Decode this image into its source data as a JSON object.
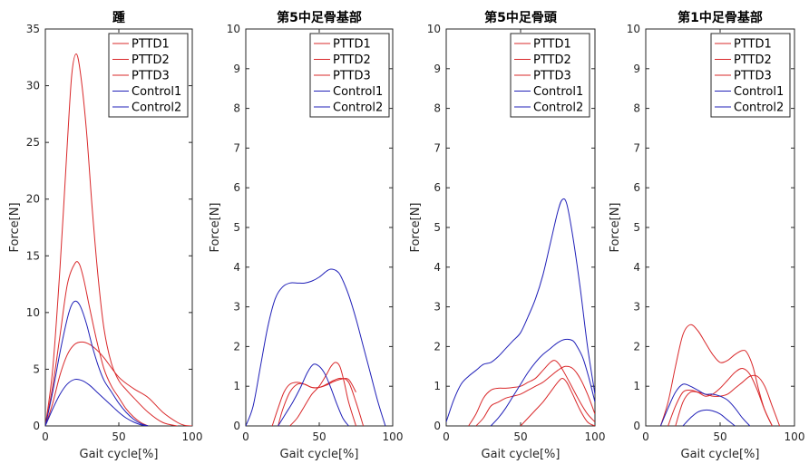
{
  "colors": {
    "PTTD": "#d9282a",
    "Control": "#2020b8",
    "axis": "#262626"
  },
  "chart_data": [
    {
      "type": "line",
      "title": "踵",
      "xlabel": "Gait cycle[%]",
      "ylabel": "Force[N]",
      "xlim": [
        0,
        100
      ],
      "ylim": [
        0,
        35
      ],
      "xticks": [
        0,
        50,
        100
      ],
      "yticks": [
        0,
        5,
        10,
        15,
        20,
        25,
        30,
        35
      ],
      "xtick_labels": [
        "0",
        "50",
        "100"
      ],
      "ytick_labels": [
        "0",
        "5",
        "10",
        "15",
        "20",
        "25",
        "30",
        "35"
      ],
      "legend": "top-right",
      "series": [
        {
          "name": "PTTD1",
          "group": "PTTD",
          "x": [
            0,
            5,
            10,
            15,
            18,
            21,
            24,
            28,
            32,
            36,
            40,
            45,
            50,
            55,
            60,
            70,
            80,
            90
          ],
          "y": [
            0,
            5,
            14,
            25,
            31,
            32.8,
            31,
            26,
            19,
            13,
            8.5,
            5.5,
            4,
            3.2,
            2.5,
            1.2,
            0.3,
            0
          ]
        },
        {
          "name": "PTTD2",
          "group": "PTTD",
          "x": [
            0,
            5,
            10,
            15,
            20,
            23,
            26,
            30,
            35,
            40,
            45,
            50,
            55,
            60,
            65,
            70
          ],
          "y": [
            0,
            3.5,
            8,
            12.5,
            14.3,
            14.3,
            13,
            10.5,
            7.5,
            5,
            3.5,
            2.5,
            1.5,
            0.8,
            0.3,
            0
          ]
        },
        {
          "name": "PTTD3",
          "group": "PTTD",
          "x": [
            0,
            5,
            10,
            15,
            20,
            25,
            30,
            35,
            40,
            50,
            60,
            70,
            80,
            90,
            95,
            100
          ],
          "y": [
            0,
            2,
            4.5,
            6.3,
            7.2,
            7.4,
            7.2,
            6.7,
            6,
            4.3,
            3.3,
            2.5,
            1.2,
            0.3,
            0.05,
            0
          ]
        },
        {
          "name": "Control1",
          "group": "Control",
          "x": [
            0,
            5,
            10,
            15,
            18,
            21,
            24,
            28,
            32,
            36,
            40,
            45,
            50,
            55,
            60,
            65,
            70
          ],
          "y": [
            0,
            3,
            6.5,
            9.5,
            10.7,
            11,
            10.5,
            9,
            7,
            5.3,
            4,
            3,
            2,
            1.2,
            0.6,
            0.2,
            0
          ]
        },
        {
          "name": "Control2",
          "group": "Control",
          "x": [
            0,
            5,
            10,
            15,
            20,
            25,
            30,
            35,
            40,
            45,
            50,
            55,
            60,
            65,
            70
          ],
          "y": [
            0,
            1.5,
            2.8,
            3.7,
            4.1,
            4,
            3.6,
            3,
            2.4,
            1.8,
            1.2,
            0.7,
            0.35,
            0.1,
            0
          ]
        }
      ]
    },
    {
      "type": "line",
      "title": "第5中足骨基部",
      "xlabel": "Gait cycle[%]",
      "ylabel": "Force[N]",
      "xlim": [
        0,
        100
      ],
      "ylim": [
        0,
        10
      ],
      "xticks": [
        0,
        50,
        100
      ],
      "yticks": [
        0,
        1,
        2,
        3,
        4,
        5,
        6,
        7,
        8,
        9,
        10
      ],
      "xtick_labels": [
        "0",
        "50",
        "100"
      ],
      "ytick_labels": [
        "0",
        "1",
        "2",
        "3",
        "4",
        "5",
        "6",
        "7",
        "8",
        "9",
        "10"
      ],
      "legend": "top-right",
      "series": [
        {
          "name": "PTTD1",
          "group": "PTTD",
          "x": [
            18,
            22,
            26,
            30,
            35,
            40,
            45,
            50,
            55,
            60,
            65,
            70,
            75,
            80
          ],
          "y": [
            0,
            0.45,
            0.85,
            1.05,
            1.1,
            1.05,
            0.97,
            0.97,
            1.05,
            1.15,
            1.2,
            1.1,
            0.6,
            0
          ]
        },
        {
          "name": "PTTD2",
          "group": "PTTD",
          "x": [
            30,
            35,
            40,
            45,
            50,
            55,
            58,
            61,
            64,
            67,
            70,
            75
          ],
          "y": [
            0,
            0.2,
            0.5,
            0.8,
            1.0,
            1.3,
            1.5,
            1.6,
            1.5,
            1.1,
            0.6,
            0
          ]
        },
        {
          "name": "PTTD3",
          "group": "PTTD",
          "x": [
            22,
            25,
            30,
            35,
            40,
            45,
            50,
            55,
            60,
            65,
            70,
            75
          ],
          "y": [
            0,
            0.4,
            0.85,
            1.05,
            1.05,
            0.97,
            0.97,
            1.03,
            1.12,
            1.18,
            1.17,
            0.85
          ]
        },
        {
          "name": "Control1",
          "group": "Control",
          "x": [
            0,
            5,
            10,
            15,
            20,
            25,
            30,
            35,
            40,
            45,
            50,
            55,
            58,
            62,
            65,
            70,
            75,
            80,
            85,
            90,
            95
          ],
          "y": [
            0,
            0.5,
            1.5,
            2.5,
            3.2,
            3.5,
            3.6,
            3.6,
            3.6,
            3.65,
            3.75,
            3.9,
            3.95,
            3.9,
            3.75,
            3.3,
            2.7,
            2.0,
            1.3,
            0.6,
            0
          ]
        },
        {
          "name": "Control2",
          "group": "Control",
          "x": [
            22,
            27,
            32,
            37,
            42,
            46,
            50,
            54,
            58,
            62,
            66,
            70
          ],
          "y": [
            0,
            0.3,
            0.6,
            0.95,
            1.35,
            1.55,
            1.5,
            1.3,
            0.95,
            0.55,
            0.2,
            0
          ]
        }
      ]
    },
    {
      "type": "line",
      "title": "第5中足骨頭",
      "xlabel": "Gait cycle[%]",
      "ylabel": "Force[N]",
      "xlim": [
        0,
        100
      ],
      "ylim": [
        0,
        10
      ],
      "xticks": [
        0,
        50,
        100
      ],
      "yticks": [
        0,
        1,
        2,
        3,
        4,
        5,
        6,
        7,
        8,
        9,
        10
      ],
      "xtick_labels": [
        "0",
        "50",
        "100"
      ],
      "ytick_labels": [
        "0",
        "1",
        "2",
        "3",
        "4",
        "5",
        "6",
        "7",
        "8",
        "9",
        "10"
      ],
      "legend": "top-right",
      "series": [
        {
          "name": "PTTD1",
          "group": "PTTD",
          "x": [
            15,
            20,
            25,
            30,
            35,
            40,
            45,
            50,
            55,
            60,
            65,
            70,
            73,
            76,
            80,
            85,
            90,
            95,
            100
          ],
          "y": [
            0,
            0.3,
            0.7,
            0.9,
            0.95,
            0.95,
            0.97,
            1.0,
            1.1,
            1.2,
            1.4,
            1.6,
            1.65,
            1.55,
            1.3,
            0.95,
            0.6,
            0.3,
            0.1
          ]
        },
        {
          "name": "PTTD2",
          "group": "PTTD",
          "x": [
            20,
            25,
            30,
            35,
            40,
            45,
            50,
            55,
            60,
            65,
            70,
            75,
            80,
            85,
            90,
            95,
            100
          ],
          "y": [
            0,
            0.2,
            0.5,
            0.6,
            0.7,
            0.75,
            0.8,
            0.9,
            1.0,
            1.1,
            1.25,
            1.4,
            1.5,
            1.45,
            1.2,
            0.8,
            0.3
          ]
        },
        {
          "name": "PTTD3",
          "group": "PTTD",
          "x": [
            50,
            55,
            60,
            65,
            70,
            75,
            78,
            81,
            85,
            90,
            95,
            100
          ],
          "y": [
            0,
            0.2,
            0.4,
            0.6,
            0.85,
            1.1,
            1.2,
            1.1,
            0.8,
            0.4,
            0.1,
            0
          ]
        },
        {
          "name": "Control1",
          "group": "Control",
          "x": [
            0,
            5,
            10,
            15,
            20,
            25,
            30,
            35,
            40,
            45,
            50,
            55,
            60,
            65,
            70,
            75,
            78,
            81,
            85,
            90,
            95,
            100
          ],
          "y": [
            0.1,
            0.65,
            1.05,
            1.25,
            1.4,
            1.55,
            1.6,
            1.75,
            1.95,
            2.15,
            2.35,
            2.75,
            3.2,
            3.8,
            4.6,
            5.4,
            5.7,
            5.6,
            4.8,
            3.5,
            2.0,
            0.8
          ]
        },
        {
          "name": "Control2",
          "group": "Control",
          "x": [
            30,
            35,
            40,
            45,
            50,
            55,
            60,
            65,
            70,
            75,
            80,
            85,
            88,
            92,
            96,
            100
          ],
          "y": [
            0,
            0.2,
            0.45,
            0.75,
            1.05,
            1.35,
            1.6,
            1.8,
            1.95,
            2.1,
            2.18,
            2.15,
            2.0,
            1.7,
            1.2,
            0.6
          ]
        }
      ]
    },
    {
      "type": "line",
      "title": "第1中足骨基部",
      "xlabel": "Gait cycle[%]",
      "ylabel": "Force[N]",
      "xlim": [
        0,
        100
      ],
      "ylim": [
        0,
        10
      ],
      "xticks": [
        0,
        50,
        100
      ],
      "yticks": [
        0,
        1,
        2,
        3,
        4,
        5,
        6,
        7,
        8,
        9,
        10
      ],
      "xtick_labels": [
        "0",
        "50",
        "100"
      ],
      "ytick_labels": [
        "0",
        "1",
        "2",
        "3",
        "4",
        "5",
        "6",
        "7",
        "8",
        "9",
        "10"
      ],
      "legend": "top-right",
      "series": [
        {
          "name": "PTTD1",
          "group": "PTTD",
          "x": [
            10,
            15,
            20,
            25,
            30,
            35,
            40,
            45,
            50,
            55,
            60,
            65,
            68,
            72,
            76,
            80,
            85
          ],
          "y": [
            0,
            0.6,
            1.5,
            2.3,
            2.55,
            2.4,
            2.1,
            1.8,
            1.6,
            1.65,
            1.8,
            1.9,
            1.85,
            1.5,
            0.9,
            0.4,
            0
          ]
        },
        {
          "name": "PTTD2",
          "group": "PTTD",
          "x": [
            15,
            20,
            25,
            30,
            35,
            40,
            45,
            50,
            55,
            60,
            65,
            70,
            75,
            80,
            85
          ],
          "y": [
            0,
            0.5,
            0.85,
            0.9,
            0.85,
            0.75,
            0.8,
            0.95,
            1.15,
            1.35,
            1.45,
            1.3,
            0.9,
            0.4,
            0
          ]
        },
        {
          "name": "PTTD3",
          "group": "PTTD",
          "x": [
            20,
            25,
            30,
            35,
            40,
            45,
            50,
            55,
            60,
            65,
            70,
            75,
            80,
            85,
            90
          ],
          "y": [
            0,
            0.6,
            0.85,
            0.85,
            0.8,
            0.75,
            0.75,
            0.8,
            0.95,
            1.1,
            1.25,
            1.25,
            1.0,
            0.5,
            0
          ]
        },
        {
          "name": "Control1",
          "group": "Control",
          "x": [
            10,
            15,
            20,
            25,
            30,
            35,
            40,
            45,
            50,
            55,
            60,
            65,
            70
          ],
          "y": [
            0,
            0.45,
            0.85,
            1.05,
            1.0,
            0.9,
            0.8,
            0.8,
            0.75,
            0.65,
            0.45,
            0.2,
            0
          ]
        },
        {
          "name": "Control2",
          "group": "Control",
          "x": [
            25,
            30,
            35,
            40,
            45,
            50,
            55,
            60
          ],
          "y": [
            0,
            0.2,
            0.35,
            0.4,
            0.38,
            0.3,
            0.15,
            0
          ]
        }
      ]
    }
  ]
}
